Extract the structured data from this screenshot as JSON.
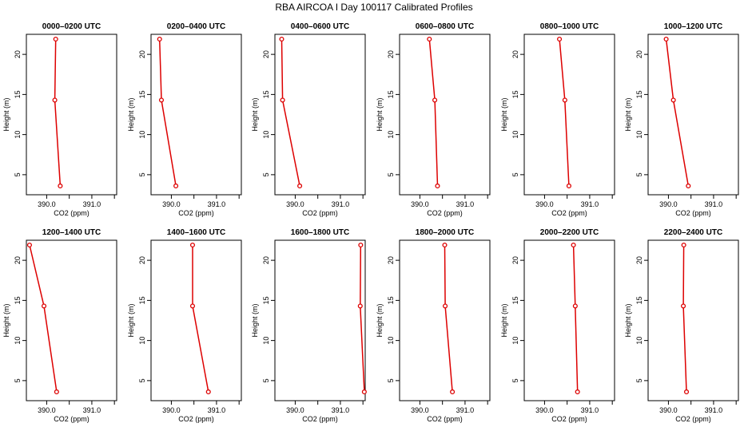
{
  "figure_title": "RBA AIRCOA I  Day 100117  Calibrated Profiles",
  "colors": {
    "line": "#dd0000",
    "marker": "#dd0000",
    "axes": "#000000"
  },
  "chart_data": [
    {
      "type": "line",
      "title": "0000–0200 UTC",
      "xlabel": "CO2 (ppm)",
      "ylabel": "Height (m)",
      "xlim": [
        389.55,
        391.55
      ],
      "ylim": [
        2.5,
        22.5
      ],
      "xticks": [
        390.0,
        390.5,
        391.0,
        391.5
      ],
      "xtick_labels": [
        "390.0",
        "",
        "391.0",
        ""
      ],
      "yticks": [
        5,
        10,
        15,
        20
      ],
      "ytick_labels": [
        "5",
        "10",
        "15",
        "20"
      ],
      "x": [
        390.2,
        390.18,
        390.3
      ],
      "y": [
        21.9,
        14.3,
        3.6
      ]
    },
    {
      "type": "line",
      "title": "0200–0400 UTC",
      "xlabel": "CO2 (ppm)",
      "ylabel": "Height (m)",
      "xlim": [
        389.55,
        391.55
      ],
      "ylim": [
        2.5,
        22.5
      ],
      "xticks": [
        390.0,
        390.5,
        391.0,
        391.5
      ],
      "xtick_labels": [
        "390.0",
        "",
        "391.0",
        ""
      ],
      "yticks": [
        5,
        10,
        15,
        20
      ],
      "ytick_labels": [
        "5",
        "10",
        "15",
        "20"
      ],
      "x": [
        389.74,
        389.78,
        390.1
      ],
      "y": [
        21.9,
        14.3,
        3.6
      ]
    },
    {
      "type": "line",
      "title": "0400–0600 UTC",
      "xlabel": "CO2 (ppm)",
      "ylabel": "Height (m)",
      "xlim": [
        389.55,
        391.55
      ],
      "ylim": [
        2.5,
        22.5
      ],
      "xticks": [
        390.0,
        390.5,
        391.0,
        391.5
      ],
      "xtick_labels": [
        "390.0",
        "",
        "391.0",
        ""
      ],
      "yticks": [
        5,
        10,
        15,
        20
      ],
      "ytick_labels": [
        "5",
        "10",
        "15",
        "20"
      ],
      "x": [
        389.7,
        389.72,
        390.1
      ],
      "y": [
        21.9,
        14.3,
        3.6
      ]
    },
    {
      "type": "line",
      "title": "0600–0800 UTC",
      "xlabel": "CO2 (ppm)",
      "ylabel": "Height (m)",
      "xlim": [
        389.55,
        391.55
      ],
      "ylim": [
        2.5,
        22.5
      ],
      "xticks": [
        390.0,
        390.5,
        391.0,
        391.5
      ],
      "xtick_labels": [
        "390.0",
        "",
        "391.0",
        ""
      ],
      "yticks": [
        5,
        10,
        15,
        20
      ],
      "ytick_labels": [
        "5",
        "10",
        "15",
        "20"
      ],
      "x": [
        390.21,
        390.33,
        390.39
      ],
      "y": [
        21.9,
        14.3,
        3.6
      ]
    },
    {
      "type": "line",
      "title": "0800–1000 UTC",
      "xlabel": "CO2 (ppm)",
      "ylabel": "Height (m)",
      "xlim": [
        389.55,
        391.55
      ],
      "ylim": [
        2.5,
        22.5
      ],
      "xticks": [
        390.0,
        390.5,
        391.0,
        391.5
      ],
      "xtick_labels": [
        "390.0",
        "",
        "391.0",
        ""
      ],
      "yticks": [
        5,
        10,
        15,
        20
      ],
      "ytick_labels": [
        "5",
        "10",
        "15",
        "20"
      ],
      "x": [
        390.33,
        390.45,
        390.54
      ],
      "y": [
        21.9,
        14.3,
        3.6
      ]
    },
    {
      "type": "line",
      "title": "1000–1200 UTC",
      "xlabel": "CO2 (ppm)",
      "ylabel": "Height (m)",
      "xlim": [
        389.55,
        391.55
      ],
      "ylim": [
        2.5,
        22.5
      ],
      "xticks": [
        390.0,
        390.5,
        391.0,
        391.5
      ],
      "xtick_labels": [
        "390.0",
        "",
        "391.0",
        ""
      ],
      "yticks": [
        5,
        10,
        15,
        20
      ],
      "ytick_labels": [
        "5",
        "10",
        "15",
        "20"
      ],
      "x": [
        389.95,
        390.11,
        390.44
      ],
      "y": [
        21.9,
        14.3,
        3.6
      ]
    },
    {
      "type": "line",
      "title": "1200–1400 UTC",
      "xlabel": "CO2 (ppm)",
      "ylabel": "Height (m)",
      "xlim": [
        389.55,
        391.55
      ],
      "ylim": [
        2.5,
        22.5
      ],
      "xticks": [
        390.0,
        390.5,
        391.0,
        391.5
      ],
      "xtick_labels": [
        "390.0",
        "",
        "391.0",
        ""
      ],
      "yticks": [
        5,
        10,
        15,
        20
      ],
      "ytick_labels": [
        "5",
        "10",
        "15",
        "20"
      ],
      "x": [
        389.62,
        389.94,
        390.22
      ],
      "y": [
        21.9,
        14.3,
        3.6
      ]
    },
    {
      "type": "line",
      "title": "1400–1600 UTC",
      "xlabel": "CO2 (ppm)",
      "ylabel": "Height (m)",
      "xlim": [
        389.55,
        391.55
      ],
      "ylim": [
        2.5,
        22.5
      ],
      "xticks": [
        390.0,
        390.5,
        391.0,
        391.5
      ],
      "xtick_labels": [
        "390.0",
        "",
        "391.0",
        ""
      ],
      "yticks": [
        5,
        10,
        15,
        20
      ],
      "ytick_labels": [
        "5",
        "10",
        "15",
        "20"
      ],
      "x": [
        390.47,
        390.47,
        390.82
      ],
      "y": [
        21.9,
        14.3,
        3.6
      ]
    },
    {
      "type": "line",
      "title": "1600–1800 UTC",
      "xlabel": "CO2 (ppm)",
      "ylabel": "Height (m)",
      "xlim": [
        389.55,
        391.55
      ],
      "ylim": [
        2.5,
        22.5
      ],
      "xticks": [
        390.0,
        390.5,
        391.0,
        391.5
      ],
      "xtick_labels": [
        "390.0",
        "",
        "391.0",
        ""
      ],
      "yticks": [
        5,
        10,
        15,
        20
      ],
      "ytick_labels": [
        "5",
        "10",
        "15",
        "20"
      ],
      "x": [
        391.45,
        391.44,
        391.53
      ],
      "y": [
        21.9,
        14.3,
        3.6
      ]
    },
    {
      "type": "line",
      "title": "1800–2000 UTC",
      "xlabel": "CO2 (ppm)",
      "ylabel": "Height (m)",
      "xlim": [
        389.55,
        391.55
      ],
      "ylim": [
        2.5,
        22.5
      ],
      "xticks": [
        390.0,
        390.5,
        391.0,
        391.5
      ],
      "xtick_labels": [
        "390.0",
        "",
        "391.0",
        ""
      ],
      "yticks": [
        5,
        10,
        15,
        20
      ],
      "ytick_labels": [
        "5",
        "10",
        "15",
        "20"
      ],
      "x": [
        390.55,
        390.56,
        390.72
      ],
      "y": [
        21.9,
        14.3,
        3.6
      ]
    },
    {
      "type": "line",
      "title": "2000–2200 UTC",
      "xlabel": "CO2 (ppm)",
      "ylabel": "Height (m)",
      "xlim": [
        389.55,
        391.55
      ],
      "ylim": [
        2.5,
        22.5
      ],
      "xticks": [
        390.0,
        390.5,
        391.0,
        391.5
      ],
      "xtick_labels": [
        "390.0",
        "",
        "391.0",
        ""
      ],
      "yticks": [
        5,
        10,
        15,
        20
      ],
      "ytick_labels": [
        "5",
        "10",
        "15",
        "20"
      ],
      "x": [
        390.64,
        390.68,
        390.73
      ],
      "y": [
        21.9,
        14.3,
        3.6
      ]
    },
    {
      "type": "line",
      "title": "2200–2400 UTC",
      "xlabel": "CO2 (ppm)",
      "ylabel": "Height (m)",
      "xlim": [
        389.55,
        391.55
      ],
      "ylim": [
        2.5,
        22.5
      ],
      "xticks": [
        390.0,
        390.5,
        391.0,
        391.5
      ],
      "xtick_labels": [
        "390.0",
        "",
        "391.0",
        ""
      ],
      "yticks": [
        5,
        10,
        15,
        20
      ],
      "ytick_labels": [
        "5",
        "10",
        "15",
        "20"
      ],
      "x": [
        390.34,
        390.33,
        390.4
      ],
      "y": [
        21.9,
        14.3,
        3.6
      ]
    }
  ]
}
